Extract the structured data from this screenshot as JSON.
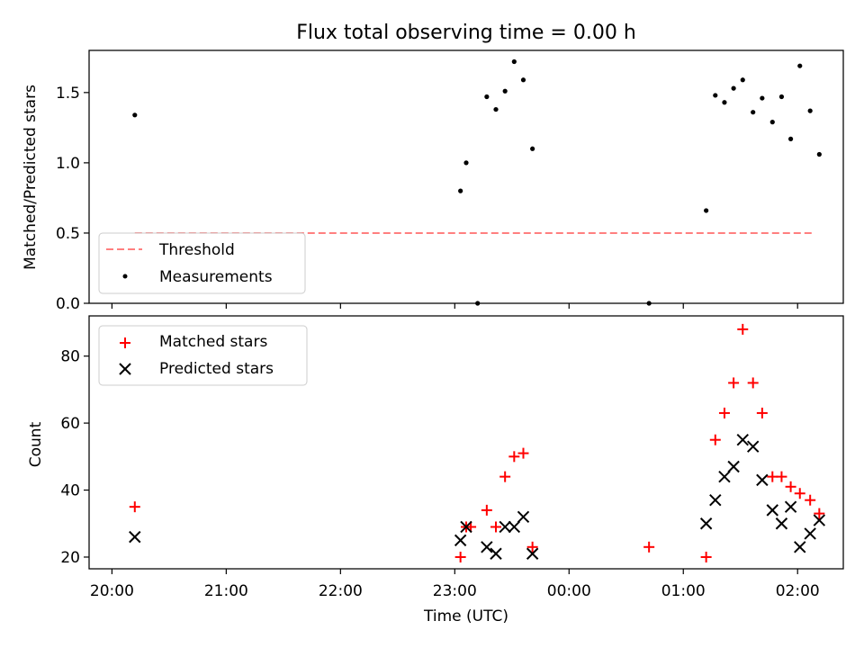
{
  "title": "Flux total observing time = 0.00 h",
  "top_panel": {
    "ylabel": "Matched/Predicted stars",
    "legend": [
      {
        "label": "Threshold",
        "color": "#ff7f7f",
        "style": "dashed-line"
      },
      {
        "label": "Measurements",
        "color": "#000000",
        "style": "dot"
      }
    ]
  },
  "bottom_panel": {
    "ylabel": "Count",
    "xlabel": "Time (UTC)",
    "legend": [
      {
        "label": "Matched stars",
        "color": "#ff0000",
        "style": "plus"
      },
      {
        "label": "Predicted stars",
        "color": "#000000",
        "style": "x"
      }
    ]
  },
  "chart_data": [
    {
      "type": "scatter",
      "title": "Flux total observing time = 0.00 h",
      "ylabel": "Matched/Predicted stars",
      "x_unit": "time (UTC, hours; values past 24 are after midnight)",
      "xlim": [
        19.8,
        26.4
      ],
      "ylim": [
        0.0,
        1.8
      ],
      "yticks": [
        0.0,
        0.5,
        1.0,
        1.5
      ],
      "grid": false,
      "legend_position": "lower-left",
      "threshold": {
        "name": "Threshold",
        "y": 0.5,
        "x_range": [
          20.2,
          26.15
        ],
        "color": "#ff7f7f"
      },
      "series": [
        {
          "name": "Measurements",
          "color": "#000000",
          "x": [
            20.2,
            23.05,
            23.1,
            23.2,
            23.28,
            23.36,
            23.44,
            23.52,
            23.6,
            23.68,
            24.7,
            25.2,
            25.28,
            25.36,
            25.44,
            25.52,
            25.61,
            25.69,
            25.78,
            25.86,
            25.94,
            26.02,
            26.11,
            26.19
          ],
          "y": [
            1.34,
            0.8,
            1.0,
            0.0,
            1.47,
            1.38,
            1.51,
            1.72,
            1.59,
            1.1,
            0.0,
            0.66,
            1.48,
            1.43,
            1.53,
            1.59,
            1.36,
            1.46,
            1.29,
            1.47,
            1.17,
            1.69,
            1.37,
            1.06
          ]
        }
      ]
    },
    {
      "type": "scatter",
      "xlabel": "Time (UTC)",
      "ylabel": "Count",
      "x_unit": "time (UTC, hours; values past 24 are after midnight)",
      "xlim": [
        19.8,
        26.4
      ],
      "ylim": [
        16.5,
        92
      ],
      "xticks": [
        20,
        21,
        22,
        23,
        24,
        25,
        26
      ],
      "xtick_labels": [
        "20:00",
        "21:00",
        "22:00",
        "23:00",
        "00:00",
        "01:00",
        "02:00"
      ],
      "yticks": [
        20,
        40,
        60,
        80
      ],
      "grid": false,
      "legend_position": "upper-left",
      "series": [
        {
          "name": "Matched stars",
          "marker": "plus",
          "color": "#ff0000",
          "x": [
            20.2,
            23.05,
            23.1,
            23.14,
            23.28,
            23.36,
            23.44,
            23.52,
            23.6,
            23.68,
            24.7,
            25.2,
            25.28,
            25.36,
            25.44,
            25.52,
            25.61,
            25.69,
            25.78,
            25.86,
            25.94,
            26.02,
            26.11,
            26.19
          ],
          "y": [
            35,
            20,
            29,
            29,
            34,
            29,
            44,
            50,
            51,
            23,
            23,
            20,
            55,
            63,
            72,
            88,
            72,
            63,
            44,
            44,
            41,
            39,
            37,
            33
          ]
        },
        {
          "name": "Predicted stars",
          "marker": "x",
          "color": "#000000",
          "x": [
            20.2,
            23.05,
            23.1,
            23.28,
            23.36,
            23.44,
            23.52,
            23.6,
            23.68,
            25.2,
            25.28,
            25.36,
            25.44,
            25.52,
            25.61,
            25.69,
            25.78,
            25.86,
            25.94,
            26.02,
            26.11,
            26.19
          ],
          "y": [
            26,
            25,
            29,
            23,
            21,
            29,
            29,
            32,
            21,
            30,
            37,
            44,
            47,
            55,
            53,
            43,
            34,
            30,
            35,
            23,
            27,
            31
          ]
        }
      ]
    }
  ]
}
